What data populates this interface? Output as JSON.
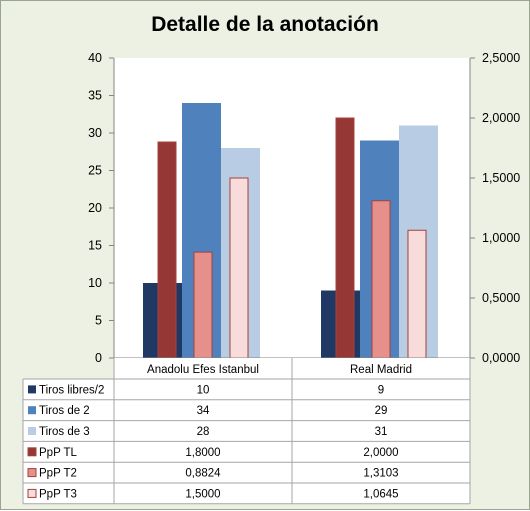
{
  "chart_data": {
    "type": "bar",
    "title": "Detalle de la anotación",
    "categories": [
      "Anadolu Efes Istanbul",
      "Real Madrid"
    ],
    "y_left": {
      "min": 0,
      "max": 40,
      "ticks": [
        "0",
        "5",
        "10",
        "15",
        "20",
        "25",
        "30",
        "35",
        "40"
      ]
    },
    "y_right": {
      "min": 0,
      "max": 2.5,
      "ticks": [
        "0,0000",
        "0,5000",
        "1,0000",
        "1,5000",
        "2,0000",
        "2,5000"
      ]
    },
    "series": [
      {
        "name": "Tiros libres/2",
        "axis": "left",
        "color": "#1f3864",
        "values": [
          10,
          9
        ],
        "display": [
          "10",
          "9"
        ]
      },
      {
        "name": "Tiros de 2",
        "axis": "left",
        "color": "#4f81bd",
        "values": [
          34,
          29
        ],
        "display": [
          "34",
          "29"
        ]
      },
      {
        "name": "Tiros de 3",
        "axis": "left",
        "color": "#b8cce4",
        "values": [
          28,
          31
        ],
        "display": [
          "28",
          "31"
        ]
      },
      {
        "name": "PpP TL",
        "axis": "right",
        "color": "#953735",
        "values": [
          1.8,
          2.0
        ],
        "display": [
          "1,8000",
          "2,0000"
        ]
      },
      {
        "name": "PpP T2",
        "axis": "right",
        "color": "#e6908c",
        "values": [
          0.8824,
          1.3103
        ],
        "display": [
          "0,8824",
          "1,3103"
        ]
      },
      {
        "name": "PpP T3",
        "axis": "right",
        "color": "#f8dcdc",
        "values": [
          1.5,
          1.0645
        ],
        "display": [
          "1,5000",
          "1,0645"
        ]
      }
    ],
    "legend": "table-below",
    "grid": false
  }
}
